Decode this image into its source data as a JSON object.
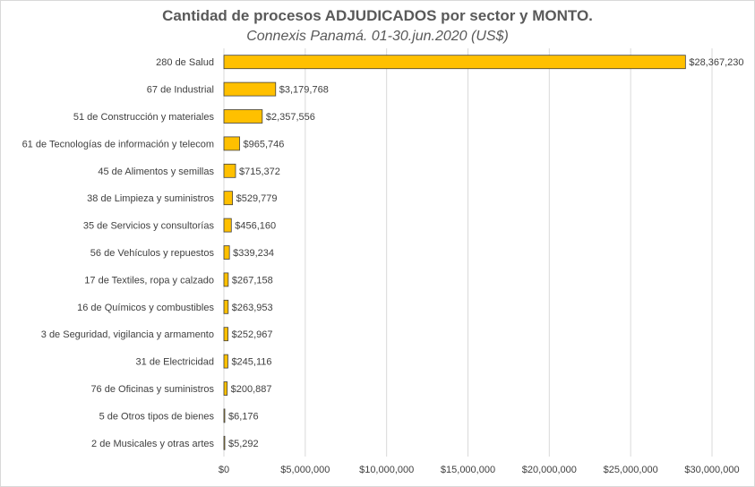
{
  "chart_data": {
    "type": "bar",
    "orientation": "horizontal",
    "title": "Cantidad de procesos ADJUDICADOS por sector y MONTO.",
    "subtitle": "Connexis Panamá. 01-30.jun.2020 (US$)",
    "categories": [
      "280 de Salud",
      "67 de Industrial",
      "51 de Construcción y materiales",
      "61 de Tecnologías de información y telecom",
      "45 de Alimentos y semillas",
      "38 de Limpieza y suministros",
      "35 de Servicios y consultorías",
      "56 de Vehículos y repuestos",
      "17 de Textiles, ropa y calzado",
      "16 de Químicos y combustibles",
      "3 de Seguridad, vigilancia y armamento",
      "31 de Electricidad",
      "76 de Oficinas y suministros",
      "5 de Otros tipos de bienes",
      "2 de Musicales y otras artes"
    ],
    "values": [
      28367230,
      3179768,
      2357556,
      965746,
      715372,
      529779,
      456160,
      339234,
      267158,
      263953,
      252967,
      245116,
      200887,
      6176,
      5292
    ],
    "data_labels": [
      "$28,367,230",
      "$3,179,768",
      "$2,357,556",
      "$965,746",
      "$715,372",
      "$529,779",
      "$456,160",
      "$339,234",
      "$267,158",
      "$263,953",
      "$252,967",
      "$245,116",
      "$200,887",
      "$6,176",
      "$5,292"
    ],
    "xlim": [
      0,
      30000000
    ],
    "xticks": [
      0,
      5000000,
      10000000,
      15000000,
      20000000,
      25000000,
      30000000
    ],
    "xtick_labels": [
      "$0",
      "$5,000,000",
      "$10,000,000",
      "$15,000,000",
      "$20,000,000",
      "$25,000,000",
      "$30,000,000"
    ],
    "grid": "vertical",
    "legend": "none",
    "bar_color": "#ffc000",
    "bar_edge_color": "#404040",
    "grid_color": "#d9d9d9"
  }
}
